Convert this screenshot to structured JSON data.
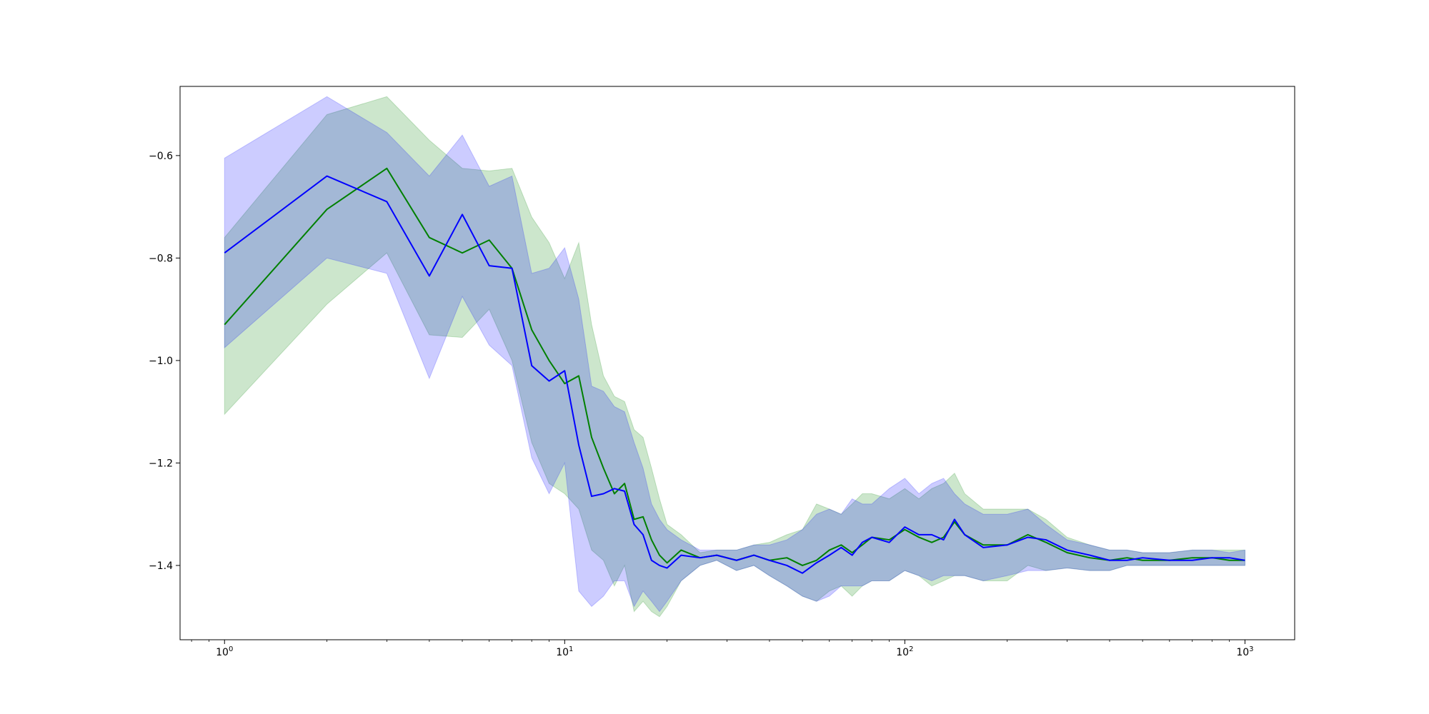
{
  "chart_data": {
    "type": "line",
    "title": "",
    "xlabel": "",
    "ylabel": "",
    "x_scale": "log",
    "xlim": [
      0.74,
      1400
    ],
    "ylim": [
      -1.545,
      -0.465
    ],
    "grid": false,
    "x_ticks": [
      {
        "value": 1,
        "base": "10",
        "exp": "0"
      },
      {
        "value": 10,
        "base": "10",
        "exp": "1"
      },
      {
        "value": 100,
        "base": "10",
        "exp": "2"
      },
      {
        "value": 1000,
        "base": "10",
        "exp": "3"
      }
    ],
    "y_ticks": [
      {
        "value": -0.6,
        "label": "−0.6"
      },
      {
        "value": -0.8,
        "label": "−0.8"
      },
      {
        "value": -1.0,
        "label": "−1.0"
      },
      {
        "value": -1.2,
        "label": "−1.2"
      },
      {
        "value": -1.4,
        "label": "−1.4"
      }
    ],
    "series": [
      {
        "color": "#008000",
        "band_color": "#008000",
        "band_opacity": 0.2,
        "x": [
          1,
          2,
          3,
          4,
          5,
          6,
          7,
          8,
          9,
          10,
          11,
          12,
          13,
          14,
          15,
          16,
          17,
          18,
          19,
          20,
          22,
          25,
          28,
          32,
          36,
          40,
          45,
          50,
          55,
          60,
          65,
          70,
          75,
          80,
          90,
          100,
          110,
          120,
          130,
          140,
          150,
          170,
          200,
          230,
          260,
          300,
          350,
          400,
          450,
          500,
          600,
          700,
          800,
          900,
          1000
        ],
        "y": [
          -0.93,
          -0.705,
          -0.625,
          -0.76,
          -0.79,
          -0.765,
          -0.82,
          -0.94,
          -1.0,
          -1.045,
          -1.03,
          -1.15,
          -1.21,
          -1.26,
          -1.24,
          -1.31,
          -1.305,
          -1.35,
          -1.38,
          -1.395,
          -1.37,
          -1.385,
          -1.38,
          -1.39,
          -1.38,
          -1.39,
          -1.385,
          -1.4,
          -1.39,
          -1.37,
          -1.36,
          -1.375,
          -1.36,
          -1.345,
          -1.35,
          -1.33,
          -1.345,
          -1.355,
          -1.345,
          -1.315,
          -1.34,
          -1.36,
          -1.36,
          -1.34,
          -1.355,
          -1.375,
          -1.385,
          -1.39,
          -1.385,
          -1.39,
          -1.39,
          -1.385,
          -1.385,
          -1.39,
          -1.39
        ],
        "y_upper": [
          -0.76,
          -0.52,
          -0.485,
          -0.57,
          -0.625,
          -0.63,
          -0.625,
          -0.72,
          -0.77,
          -0.84,
          -0.77,
          -0.93,
          -1.03,
          -1.07,
          -1.08,
          -1.135,
          -1.15,
          -1.21,
          -1.27,
          -1.32,
          -1.34,
          -1.375,
          -1.37,
          -1.37,
          -1.36,
          -1.355,
          -1.34,
          -1.33,
          -1.28,
          -1.29,
          -1.3,
          -1.28,
          -1.26,
          -1.26,
          -1.27,
          -1.25,
          -1.27,
          -1.25,
          -1.24,
          -1.22,
          -1.26,
          -1.29,
          -1.29,
          -1.29,
          -1.31,
          -1.345,
          -1.36,
          -1.37,
          -1.37,
          -1.375,
          -1.375,
          -1.37,
          -1.37,
          -1.37,
          -1.37
        ],
        "y_lower": [
          -1.105,
          -0.89,
          -0.79,
          -0.95,
          -0.955,
          -0.9,
          -1.0,
          -1.16,
          -1.24,
          -1.26,
          -1.29,
          -1.37,
          -1.39,
          -1.44,
          -1.4,
          -1.49,
          -1.47,
          -1.49,
          -1.5,
          -1.48,
          -1.43,
          -1.4,
          -1.39,
          -1.41,
          -1.4,
          -1.42,
          -1.44,
          -1.46,
          -1.47,
          -1.45,
          -1.44,
          -1.46,
          -1.44,
          -1.43,
          -1.43,
          -1.41,
          -1.42,
          -1.44,
          -1.43,
          -1.42,
          -1.42,
          -1.43,
          -1.43,
          -1.4,
          -1.41,
          -1.405,
          -1.41,
          -1.41,
          -1.4,
          -1.4,
          -1.4,
          -1.4,
          -1.4,
          -1.4,
          -1.4
        ]
      },
      {
        "color": "#0000ff",
        "band_color": "#0000ff",
        "band_opacity": 0.2,
        "x": [
          1,
          2,
          3,
          4,
          5,
          6,
          7,
          8,
          9,
          10,
          11,
          12,
          13,
          14,
          15,
          16,
          17,
          18,
          19,
          20,
          22,
          25,
          28,
          32,
          36,
          40,
          45,
          50,
          55,
          60,
          65,
          70,
          75,
          80,
          90,
          100,
          110,
          120,
          130,
          140,
          150,
          170,
          200,
          230,
          260,
          300,
          350,
          400,
          450,
          500,
          600,
          700,
          800,
          900,
          1000
        ],
        "y": [
          -0.79,
          -0.64,
          -0.69,
          -0.835,
          -0.715,
          -0.815,
          -0.82,
          -1.01,
          -1.04,
          -1.02,
          -1.165,
          -1.265,
          -1.26,
          -1.25,
          -1.255,
          -1.32,
          -1.34,
          -1.39,
          -1.4,
          -1.405,
          -1.38,
          -1.385,
          -1.38,
          -1.39,
          -1.38,
          -1.39,
          -1.4,
          -1.415,
          -1.395,
          -1.38,
          -1.365,
          -1.38,
          -1.355,
          -1.345,
          -1.355,
          -1.325,
          -1.34,
          -1.34,
          -1.35,
          -1.31,
          -1.34,
          -1.365,
          -1.36,
          -1.345,
          -1.35,
          -1.37,
          -1.38,
          -1.39,
          -1.39,
          -1.385,
          -1.39,
          -1.39,
          -1.385,
          -1.385,
          -1.39
        ],
        "y_upper": [
          -0.605,
          -0.485,
          -0.555,
          -0.64,
          -0.56,
          -0.66,
          -0.64,
          -0.83,
          -0.82,
          -0.78,
          -0.88,
          -1.05,
          -1.06,
          -1.09,
          -1.1,
          -1.16,
          -1.21,
          -1.28,
          -1.31,
          -1.33,
          -1.35,
          -1.37,
          -1.37,
          -1.37,
          -1.36,
          -1.36,
          -1.35,
          -1.33,
          -1.3,
          -1.29,
          -1.3,
          -1.27,
          -1.28,
          -1.28,
          -1.25,
          -1.23,
          -1.26,
          -1.24,
          -1.23,
          -1.26,
          -1.28,
          -1.3,
          -1.3,
          -1.29,
          -1.32,
          -1.35,
          -1.36,
          -1.37,
          -1.37,
          -1.375,
          -1.375,
          -1.37,
          -1.37,
          -1.375,
          -1.37
        ],
        "y_lower": [
          -0.975,
          -0.8,
          -0.83,
          -1.035,
          -0.875,
          -0.97,
          -1.01,
          -1.19,
          -1.26,
          -1.2,
          -1.45,
          -1.48,
          -1.46,
          -1.43,
          -1.43,
          -1.48,
          -1.45,
          -1.47,
          -1.49,
          -1.47,
          -1.43,
          -1.4,
          -1.39,
          -1.41,
          -1.4,
          -1.42,
          -1.44,
          -1.46,
          -1.47,
          -1.46,
          -1.44,
          -1.44,
          -1.44,
          -1.43,
          -1.43,
          -1.41,
          -1.42,
          -1.43,
          -1.42,
          -1.42,
          -1.42,
          -1.43,
          -1.42,
          -1.41,
          -1.41,
          -1.405,
          -1.41,
          -1.41,
          -1.4,
          -1.4,
          -1.4,
          -1.4,
          -1.4,
          -1.4,
          -1.4
        ]
      }
    ]
  }
}
